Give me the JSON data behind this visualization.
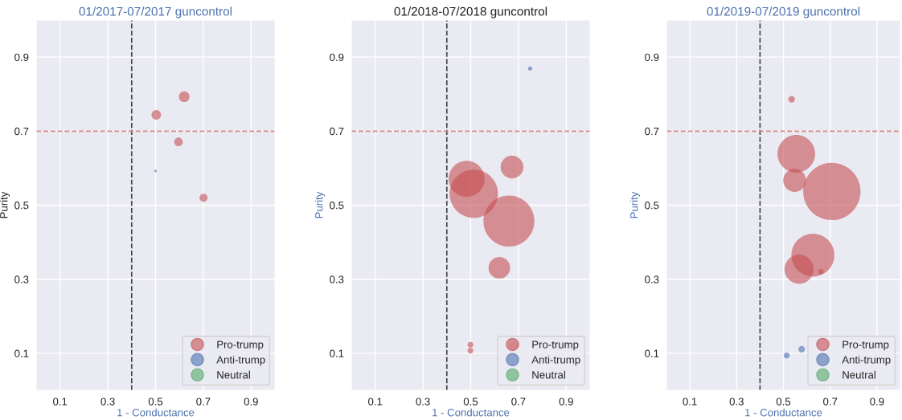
{
  "chart_data": [
    {
      "type": "bubble",
      "title": "01/2017-07/2017 guncontrol",
      "xlabel": "1 - Conductance",
      "ylabel": "Purity",
      "xlim": [
        0,
        1
      ],
      "ylim": [
        0,
        1
      ],
      "xticks": [
        0.1,
        0.3,
        0.5,
        0.7,
        0.9
      ],
      "yticks": [
        0.1,
        0.3,
        0.5,
        0.7,
        0.9
      ],
      "grid": true,
      "legend": "bottom right",
      "ref_lines": [
        {
          "axis": "x",
          "value": 0.4,
          "color": "#444444",
          "line_style": "dashed"
        },
        {
          "axis": "y",
          "value": 0.7,
          "color": "#d48a8c",
          "line_style": "dashed"
        }
      ],
      "series": [
        {
          "name": "Pro-trump",
          "color": "#c44e52",
          "x": [
            0.62,
            0.503,
            0.596,
            0.701
          ],
          "values": [
            0.793,
            0.744,
            0.671,
            0.52
          ],
          "sizes": [
            1,
            0.81,
            0.64,
            0.56
          ]
        },
        {
          "name": "Anti-trump",
          "color": "#4c72b0",
          "x": [
            0.5
          ],
          "values": [
            0.592
          ],
          "sizes": [
            0.06
          ]
        },
        {
          "name": "Neutral",
          "color": "#55a868"
        }
      ]
    },
    {
      "type": "bubble",
      "title": "01/2018-07/2018 guncontrol",
      "xlabel": "1 - Conductance",
      "ylabel": "Purity",
      "xlim": [
        0,
        1
      ],
      "ylim": [
        0,
        1
      ],
      "xticks": [
        0.1,
        0.3,
        0.5,
        0.7,
        0.9
      ],
      "yticks": [
        0.1,
        0.3,
        0.5,
        0.7,
        0.9
      ],
      "grid": true,
      "legend": "bottom right",
      "ref_lines": [
        {
          "axis": "x",
          "value": 0.4,
          "color": "#444444",
          "line_style": "dashed"
        },
        {
          "axis": "y",
          "value": 0.7,
          "color": "#d48a8c",
          "line_style": "dashed"
        }
      ],
      "series": [
        {
          "name": "Pro-trump",
          "color": "#c44e52",
          "x": [
            0.483,
            0.513,
            0.673,
            0.66,
            0.62,
            0.499,
            0.499,
            0.679
          ],
          "values": [
            0.571,
            0.531,
            0.603,
            0.457,
            0.331,
            0.123,
            0.107,
            0.12
          ],
          "sizes": [
            0.5,
            0.9,
            0.2,
            1,
            0.18,
            0.013,
            0.013,
            0.025
          ]
        },
        {
          "name": "Anti-trump",
          "color": "#4c72b0",
          "x": [
            0.749
          ],
          "values": [
            0.869
          ],
          "sizes": [
            0.007
          ]
        },
        {
          "name": "Neutral",
          "color": "#55a868"
        }
      ]
    },
    {
      "type": "bubble",
      "title": "01/2019-07/2019 guncontrol",
      "xlabel": "1 - Conductance",
      "ylabel": "Purity",
      "xlim": [
        0,
        1
      ],
      "ylim": [
        0,
        1
      ],
      "xticks": [
        0.1,
        0.3,
        0.5,
        0.7,
        0.9
      ],
      "yticks": [
        0.1,
        0.3,
        0.5,
        0.7,
        0.9
      ],
      "grid": true,
      "legend": "bottom right",
      "ref_lines": [
        {
          "axis": "x",
          "value": 0.4,
          "color": "#444444",
          "line_style": "dashed"
        },
        {
          "axis": "y",
          "value": 0.7,
          "color": "#d48a8c",
          "line_style": "dashed"
        }
      ],
      "series": [
        {
          "name": "Pro-trump",
          "color": "#c44e52",
          "x": [
            0.535,
            0.555,
            0.548,
            0.707,
            0.626,
            0.567,
            0.66
          ],
          "values": [
            0.786,
            0.639,
            0.567,
            0.537,
            0.365,
            0.327,
            0.32
          ],
          "sizes": [
            0.013,
            0.43,
            0.16,
            1,
            0.56,
            0.26,
            0.009
          ]
        },
        {
          "name": "Anti-trump",
          "color": "#4c72b0",
          "x": [
            0.514,
            0.578
          ],
          "values": [
            0.094,
            0.111
          ],
          "sizes": [
            0.011,
            0.013
          ]
        },
        {
          "name": "Neutral",
          "color": "#55a868"
        }
      ]
    }
  ]
}
